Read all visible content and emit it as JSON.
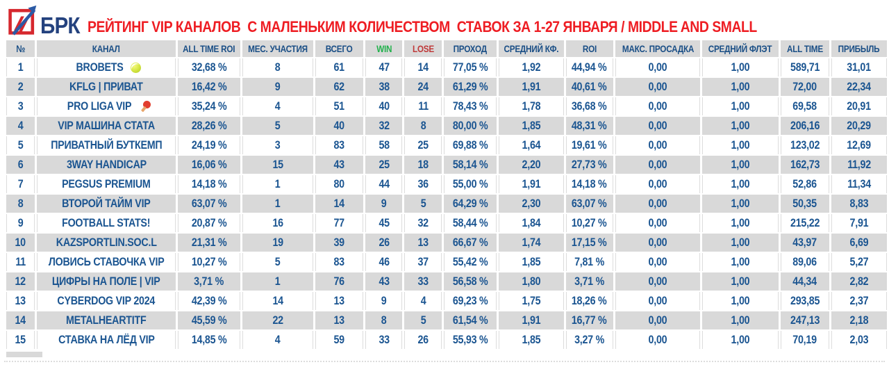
{
  "header": {
    "logo_text": "БРК",
    "title": "РЕЙТИНГ VIP КАНАЛОВ  С МАЛЕНЬКИМ КОЛИЧЕСТВОМ  СТАВОК ЗА 1-27 ЯНВАРЯ / MIDDLE AND SMALL"
  },
  "colors": {
    "title_red": "#ee1d23",
    "logo_navy": "#24427e",
    "logo_frame_red": "#d6282e",
    "logo_arrow_blue": "#2b5aa5",
    "table_text_blue": "#1b5591",
    "header_text_blue": "#1b4f86",
    "win_green": "#22b14c",
    "lose_red": "#bf3a3a",
    "row_gray": "#d9d9d9",
    "row_white": "#ffffff"
  },
  "chart_data": {
    "type": "table",
    "title": "РЕЙТИНГ VIP КАНАЛОВ  С МАЛЕНЬКИМ КОЛИЧЕСТВОМ  СТАВОК ЗА 1-27 ЯНВАРЯ / MIDDLE AND SMALL",
    "columns": [
      {
        "key": "num",
        "label": "№"
      },
      {
        "key": "channel",
        "label": "КАНАЛ"
      },
      {
        "key": "all-time-roi",
        "label": "ALL TIME ROI"
      },
      {
        "key": "months",
        "label": "МЕС. УЧАСТИЯ"
      },
      {
        "key": "total",
        "label": "ВСЕГО"
      },
      {
        "key": "win",
        "label": "WIN",
        "color": "#22b14c"
      },
      {
        "key": "lose",
        "label": "LOSE",
        "color": "#bf3a3a"
      },
      {
        "key": "pass-rate",
        "label": "ПРОХОД"
      },
      {
        "key": "avg-odds",
        "label": "СРЕДНИЙ КФ."
      },
      {
        "key": "roi",
        "label": "ROI"
      },
      {
        "key": "max-drawdown",
        "label": "МАКС. ПРОСАДКА"
      },
      {
        "key": "avg-flat",
        "label": "СРЕДНИЙ ФЛЭТ"
      },
      {
        "key": "all-time",
        "label": "ALL TIME"
      },
      {
        "key": "profit",
        "label": "ПРИБЫЛЬ"
      }
    ],
    "rows": [
      {
        "num": "1",
        "channel": "BROBETS",
        "icon": "tennis-ball",
        "values": [
          "32,68 %",
          "8",
          "61",
          "47",
          "14",
          "77,05 %",
          "1,92",
          "44,94 %",
          "0,00",
          "1,00",
          "589,71",
          "31,01"
        ]
      },
      {
        "num": "2",
        "channel": "KFLG | ПРИВАТ",
        "icon": null,
        "values": [
          "16,42 %",
          "9",
          "62",
          "38",
          "24",
          "61,29 %",
          "1,91",
          "40,61 %",
          "0,00",
          "1,00",
          "72,00",
          "22,34"
        ]
      },
      {
        "num": "3",
        "channel": "PRO LIGA VIP",
        "icon": "ping-pong",
        "values": [
          "35,24 %",
          "4",
          "51",
          "40",
          "11",
          "78,43 %",
          "1,78",
          "36,68 %",
          "0,00",
          "1,00",
          "69,58",
          "20,91"
        ]
      },
      {
        "num": "4",
        "channel": "VIP МАШИНА СТАТА",
        "icon": null,
        "values": [
          "28,26 %",
          "5",
          "40",
          "32",
          "8",
          "80,00 %",
          "1,85",
          "48,31 %",
          "0,00",
          "1,00",
          "206,16",
          "20,29"
        ]
      },
      {
        "num": "5",
        "channel": "ПРИВАТНЫЙ БУТКЕМП",
        "icon": null,
        "values": [
          "24,19 %",
          "3",
          "83",
          "58",
          "25",
          "69,88 %",
          "1,64",
          "19,61 %",
          "0,00",
          "1,00",
          "123,02",
          "12,69"
        ]
      },
      {
        "num": "6",
        "channel": "3WAY HANDICAP",
        "icon": null,
        "values": [
          "16,06 %",
          "15",
          "43",
          "25",
          "18",
          "58,14 %",
          "2,20",
          "27,73 %",
          "0,00",
          "1,00",
          "162,73",
          "11,92"
        ]
      },
      {
        "num": "7",
        "channel": "PEGSUS PREMIUM",
        "icon": null,
        "values": [
          "14,18 %",
          "1",
          "80",
          "44",
          "36",
          "55,00 %",
          "1,91",
          "14,18 %",
          "0,00",
          "1,00",
          "52,86",
          "11,34"
        ]
      },
      {
        "num": "8",
        "channel": "ВТОРОЙ ТАЙМ VIP",
        "icon": null,
        "values": [
          "63,07 %",
          "1",
          "14",
          "9",
          "5",
          "64,29 %",
          "2,30",
          "63,07 %",
          "0,00",
          "1,00",
          "50,35",
          "8,83"
        ]
      },
      {
        "num": "9",
        "channel": "FOOTBALL STATS!",
        "icon": null,
        "values": [
          "20,87 %",
          "16",
          "77",
          "45",
          "32",
          "58,44 %",
          "1,84",
          "10,27 %",
          "0,00",
          "1,00",
          "215,22",
          "7,91"
        ]
      },
      {
        "num": "10",
        "channel": "KAZSPORTLIN.SOC.L",
        "icon": null,
        "values": [
          "21,31 %",
          "19",
          "39",
          "26",
          "13",
          "66,67 %",
          "1,74",
          "17,15 %",
          "0,00",
          "1,00",
          "43,97",
          "6,69"
        ]
      },
      {
        "num": "11",
        "channel": "ЛОВИСЬ СТАВОЧКА VIP",
        "icon": null,
        "values": [
          "10,27 %",
          "5",
          "83",
          "46",
          "37",
          "55,42 %",
          "1,85",
          "7,81 %",
          "0,00",
          "1,00",
          "89,06",
          "5,27"
        ]
      },
      {
        "num": "12",
        "channel": "ЦИФРЫ НА ПОЛЕ | VIP",
        "icon": null,
        "values": [
          "3,71 %",
          "1",
          "76",
          "43",
          "33",
          "56,58 %",
          "1,80",
          "3,71 %",
          "0,00",
          "1,00",
          "44,34",
          "2,82"
        ]
      },
      {
        "num": "13",
        "channel": "CYBERDOG VIP 2024",
        "icon": null,
        "values": [
          "42,39 %",
          "14",
          "13",
          "9",
          "4",
          "69,23 %",
          "1,75",
          "18,26 %",
          "0,00",
          "1,00",
          "293,85",
          "2,37"
        ]
      },
      {
        "num": "14",
        "channel": "METALHEARTITF",
        "icon": null,
        "values": [
          "45,59 %",
          "22",
          "13",
          "8",
          "5",
          "61,54 %",
          "1,91",
          "16,77 %",
          "0,00",
          "1,00",
          "247,13",
          "2,18"
        ]
      },
      {
        "num": "15",
        "channel": "СТАВКА НА ЛЁД VIP",
        "icon": null,
        "values": [
          "14,85 %",
          "4",
          "59",
          "33",
          "26",
          "55,93 %",
          "1,85",
          "3,27 %",
          "0,00",
          "1,00",
          "70,19",
          "2,03"
        ]
      }
    ]
  }
}
